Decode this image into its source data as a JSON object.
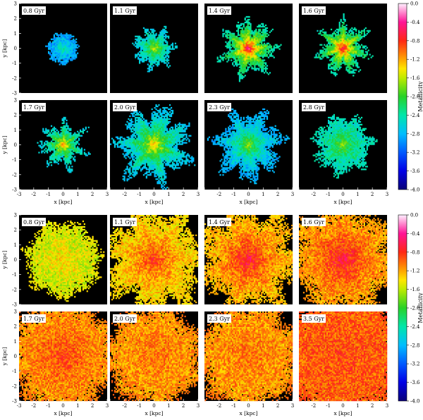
{
  "chart_data": [
    {
      "type": "heatmap",
      "quantity": "stars",
      "xlabel": "x [kpc]",
      "ylabel": "y [kpc]",
      "xlim": [
        -3,
        3
      ],
      "ylim": [
        -3,
        3
      ],
      "x_ticks": [
        "-3",
        "-2",
        "-1",
        "0",
        "1",
        "2",
        "3"
      ],
      "y_ticks": [
        "3",
        "2",
        "1",
        "0",
        "-1",
        "-2",
        "-3"
      ],
      "colorbar": {
        "label": "Metallicity",
        "range": [
          -4.0,
          0.0
        ],
        "ticks": [
          "0.0",
          "-0.4",
          "-0.8",
          "-1.2",
          "-1.6",
          "-2.0",
          "-2.4",
          "-2.8",
          "-3.2",
          "-3.6",
          "-4.0"
        ]
      },
      "panels": [
        {
          "time": "0.8 Gyr",
          "radius_kpc": 1.0,
          "raggedness": 0.1,
          "core_metallicity": -2.2,
          "edge_metallicity": -3.0
        },
        {
          "time": "1.1 Gyr",
          "radius_kpc": 1.2,
          "raggedness": 0.3,
          "core_metallicity": -1.3,
          "edge_metallicity": -2.8
        },
        {
          "time": "1.4 Gyr",
          "radius_kpc": 1.6,
          "raggedness": 0.35,
          "core_metallicity": -0.1,
          "edge_metallicity": -2.6
        },
        {
          "time": "1.6 Gyr",
          "radius_kpc": 1.5,
          "raggedness": 0.4,
          "core_metallicity": -0.2,
          "edge_metallicity": -2.6
        },
        {
          "time": "1.7 Gyr",
          "radius_kpc": 1.3,
          "raggedness": 0.45,
          "core_metallicity": -0.8,
          "edge_metallicity": -2.8
        },
        {
          "time": "2.0 Gyr",
          "radius_kpc": 2.2,
          "raggedness": 0.35,
          "core_metallicity": -1.0,
          "edge_metallicity": -2.9
        },
        {
          "time": "2.3 Gyr",
          "radius_kpc": 2.0,
          "raggedness": 0.3,
          "core_metallicity": -1.5,
          "edge_metallicity": -3.0
        },
        {
          "time": "2.8 Gyr",
          "radius_kpc": 1.8,
          "raggedness": 0.2,
          "core_metallicity": -1.7,
          "edge_metallicity": -2.6
        }
      ]
    },
    {
      "type": "heatmap",
      "quantity": "gas",
      "xlabel": "x [kpc]",
      "ylabel": "y [kpc]",
      "xlim": [
        -3,
        3
      ],
      "ylim": [
        -3,
        3
      ],
      "x_ticks": [
        "-3",
        "-2",
        "-1",
        "0",
        "1",
        "2",
        "3"
      ],
      "y_ticks": [
        "3",
        "2",
        "1",
        "0",
        "-1",
        "-2",
        "-3"
      ],
      "colorbar": {
        "label": "Metallicity",
        "range": [
          -4.0,
          0.0
        ],
        "ticks": [
          "0.0",
          "-0.4",
          "-0.8",
          "-1.2",
          "-1.6",
          "-2.0",
          "-2.4",
          "-2.8",
          "-3.2",
          "-3.6",
          "-4.0"
        ]
      },
      "panels": [
        {
          "time": "0.8 Gyr",
          "radius_kpc": 2.4,
          "raggedness": 0.1,
          "core_metallicity": -1.3,
          "edge_metallicity": -1.6
        },
        {
          "time": "1.1 Gyr",
          "radius_kpc": 3.2,
          "raggedness": 0.25,
          "core_metallicity": -0.7,
          "edge_metallicity": -1.5
        },
        {
          "time": "1.4 Gyr",
          "radius_kpc": 3.2,
          "raggedness": 0.25,
          "core_metallicity": -0.5,
          "edge_metallicity": -1.4
        },
        {
          "time": "1.6 Gyr",
          "radius_kpc": 3.4,
          "raggedness": 0.15,
          "core_metallicity": -0.5,
          "edge_metallicity": -1.3
        },
        {
          "time": "1.7 Gyr",
          "radius_kpc": 3.6,
          "raggedness": 0.1,
          "core_metallicity": -0.8,
          "edge_metallicity": -1.2
        },
        {
          "time": "2.0 Gyr",
          "radius_kpc": 3.2,
          "raggedness": 0.1,
          "core_metallicity": -1.0,
          "edge_metallicity": -1.2
        },
        {
          "time": "2.3 Gyr",
          "radius_kpc": 3.4,
          "raggedness": 0.1,
          "core_metallicity": -1.0,
          "edge_metallicity": -1.2
        },
        {
          "time": "3.5 Gyr",
          "radius_kpc": 4.2,
          "raggedness": 0.05,
          "core_metallicity": -0.9,
          "edge_metallicity": -1.0
        }
      ]
    }
  ]
}
